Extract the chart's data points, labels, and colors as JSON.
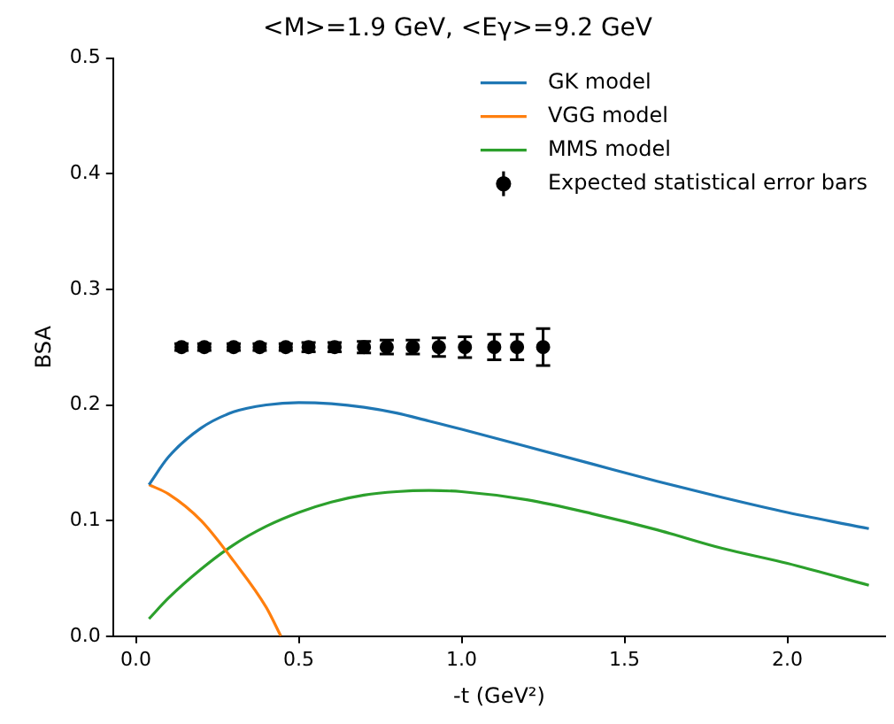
{
  "chart_data": {
    "type": "line",
    "title": "<M>=1.9 GeV, <Eγ>=9.2 GeV",
    "xlabel": "-t (GeV²)",
    "ylabel": "BSA",
    "xlim": [
      -0.07,
      2.3
    ],
    "xticks": [
      {
        "value": 0,
        "label": "0.0"
      },
      {
        "value": 0.5,
        "label": "0.5"
      },
      {
        "value": 1,
        "label": "1.0"
      },
      {
        "value": 1.5,
        "label": "1.5"
      },
      {
        "value": 2,
        "label": "2.0"
      }
    ],
    "ylim": [
      0,
      0.5
    ],
    "yticks": [
      {
        "value": 0,
        "label": "0.0"
      },
      0.1,
      0.2,
      0.3,
      0.4,
      0.5
    ],
    "grid": false,
    "legend": "top right",
    "line_style": "solid",
    "marker": "none",
    "series": [
      {
        "name": "GK model",
        "color": "#1f77b4",
        "x": [
          0.04,
          0.1,
          0.2,
          0.3,
          0.4,
          0.5,
          0.6,
          0.7,
          0.8,
          0.9,
          1.0,
          1.2,
          1.4,
          1.6,
          1.8,
          2.0,
          2.25
        ],
        "values": [
          0.131,
          0.155,
          0.18,
          0.194,
          0.2,
          0.202,
          0.201,
          0.198,
          0.193,
          0.186,
          0.179,
          0.164,
          0.149,
          0.134,
          0.12,
          0.107,
          0.093
        ]
      },
      {
        "name": "VGG model",
        "color": "#ff7f0e",
        "x": [
          0.04,
          0.1,
          0.2,
          0.3,
          0.4,
          0.445
        ],
        "values": [
          0.131,
          0.123,
          0.1,
          0.065,
          0.025,
          0.0
        ]
      },
      {
        "name": "MMS model",
        "color": "#2ca02c",
        "x": [
          0.04,
          0.1,
          0.2,
          0.3,
          0.4,
          0.5,
          0.6,
          0.7,
          0.8,
          0.9,
          1.0,
          1.2,
          1.4,
          1.6,
          1.8,
          2.0,
          2.25
        ],
        "values": [
          0.015,
          0.033,
          0.058,
          0.079,
          0.095,
          0.107,
          0.116,
          0.122,
          0.125,
          0.126,
          0.125,
          0.118,
          0.106,
          0.092,
          0.076,
          0.063,
          0.044
        ]
      },
      {
        "name": "Expected statistical error bars",
        "type": "scatter",
        "marker": "circle",
        "color": "#000000",
        "x": [
          0.14,
          0.21,
          0.3,
          0.38,
          0.46,
          0.53,
          0.61,
          0.7,
          0.77,
          0.85,
          0.93,
          1.01,
          1.1,
          1.17,
          1.25
        ],
        "values": [
          0.25,
          0.25,
          0.25,
          0.25,
          0.25,
          0.25,
          0.25,
          0.25,
          0.25,
          0.25,
          0.25,
          0.25,
          0.25,
          0.25,
          0.25
        ],
        "errors": [
          0.003,
          0.003,
          0.003,
          0.003,
          0.003,
          0.004,
          0.004,
          0.005,
          0.006,
          0.006,
          0.008,
          0.009,
          0.011,
          0.011,
          0.016
        ]
      }
    ]
  }
}
